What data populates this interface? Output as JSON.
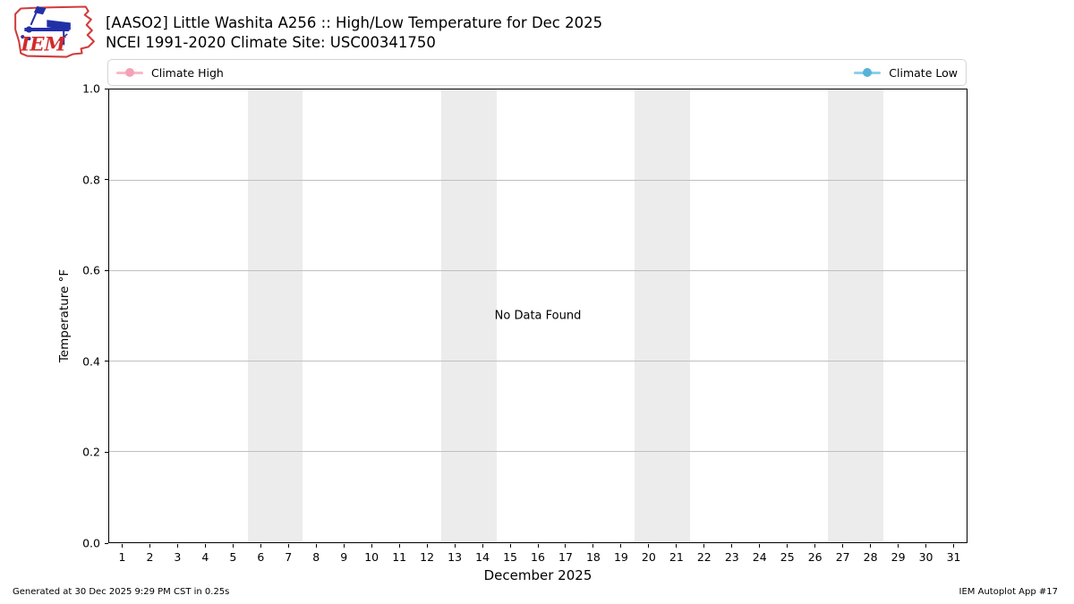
{
  "header": {
    "title_line1": "[AASO2] Little Washita A256 :: High/Low Temperature for Dec 2025",
    "title_line2": "NCEI 1991-2020 Climate Site: USC00341750",
    "logo_text": "IEM"
  },
  "footer": {
    "generated": "Generated at 30 Dec 2025 9:29 PM CST in 0.25s",
    "app": "IEM Autoplot App #17"
  },
  "chart_data": {
    "type": "line",
    "title": "[AASO2] Little Washita A256 :: High/Low Temperature for Dec 2025",
    "subtitle": "NCEI 1991-2020 Climate Site: USC00341750",
    "xlabel": "December 2025",
    "ylabel": "Temperature °F",
    "no_data_text": "No Data Found",
    "xlim": [
      0.5,
      31.5
    ],
    "ylim": [
      0.0,
      1.0
    ],
    "grid": true,
    "legend_position": "top, full plot width, first series left / second series right",
    "x_ticks": [
      1,
      2,
      3,
      4,
      5,
      6,
      7,
      8,
      9,
      10,
      11,
      12,
      13,
      14,
      15,
      16,
      17,
      18,
      19,
      20,
      21,
      22,
      23,
      24,
      25,
      26,
      27,
      28,
      29,
      30,
      31
    ],
    "y_ticks": [
      {
        "value": 0.0,
        "label": "0.0"
      },
      {
        "value": 0.2,
        "label": "0.2"
      },
      {
        "value": 0.4,
        "label": "0.4"
      },
      {
        "value": 0.6,
        "label": "0.6"
      },
      {
        "value": 0.8,
        "label": "0.8"
      },
      {
        "value": 1.0,
        "label": "1.0"
      }
    ],
    "weekend_bands": [
      [
        5.5,
        7.5
      ],
      [
        12.5,
        14.5
      ],
      [
        19.5,
        21.5
      ],
      [
        26.5,
        28.5
      ]
    ],
    "series": [
      {
        "name": "Climate High",
        "line_color": "#f9b8c6",
        "marker_color": "#f5a2b8",
        "values": []
      },
      {
        "name": "Climate Low",
        "line_color": "#8ccfec",
        "marker_color": "#57b2da",
        "values": []
      }
    ],
    "colors": {
      "band": "#ececec",
      "grid": "#bfbfbf",
      "axis": "#000000",
      "background": "#ffffff"
    }
  }
}
